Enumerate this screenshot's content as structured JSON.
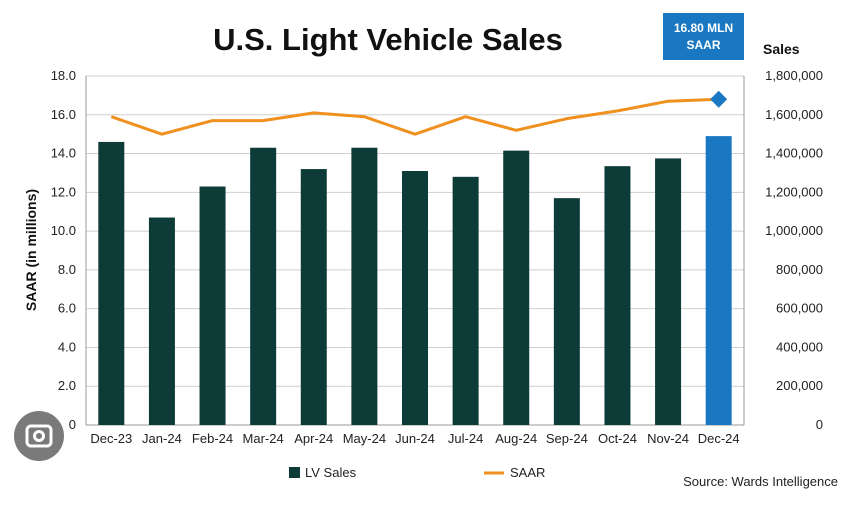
{
  "chart_data": {
    "type": "bar+line",
    "title": "U.S. Light Vehicle Sales",
    "categories": [
      "Dec-23",
      "Jan-24",
      "Feb-24",
      "Mar-24",
      "Apr-24",
      "May-24",
      "Jun-24",
      "Jul-24",
      "Aug-24",
      "Sep-24",
      "Oct-24",
      "Nov-24",
      "Dec-24"
    ],
    "series": [
      {
        "name": "LV Sales",
        "type": "bar",
        "axis": "right",
        "values": [
          1460000,
          1070000,
          1230000,
          1430000,
          1320000,
          1430000,
          1310000,
          1280000,
          1415000,
          1170000,
          1335000,
          1375000,
          1490000
        ],
        "color": "#0d3b38",
        "highlight_color": "#1a78c2"
      },
      {
        "name": "SAAR",
        "type": "line",
        "axis": "left",
        "values": [
          15.9,
          15.0,
          15.7,
          15.7,
          16.1,
          15.9,
          15.0,
          15.9,
          15.2,
          15.8,
          16.2,
          16.7,
          16.8
        ],
        "color": "#f0901e"
      }
    ],
    "ylabel": "SAAR (in millions)",
    "ylim": [
      0,
      18
    ],
    "yticks": [
      "0",
      "2.0",
      "4.0",
      "6.0",
      "8.0",
      "10.0",
      "12.0",
      "14.0",
      "16.0",
      "18.0"
    ],
    "y2label": "Sales",
    "y2lim": [
      0,
      1800000
    ],
    "y2ticks": [
      "0",
      "200,000",
      "400,000",
      "600,000",
      "800,000",
      "1,000,000",
      "1,200,000",
      "1,400,000",
      "1,600,000",
      "1,800,000"
    ],
    "callout": {
      "line1": "16.80 MLN",
      "line2": "SAAR",
      "color": "#1a78c2"
    },
    "legend": [
      {
        "label": "LV Sales",
        "color": "#0d3b38"
      },
      {
        "label": "SAAR",
        "color": "#f0901e"
      }
    ],
    "legend_position": "bottom",
    "source": "Source: Wards Intelligence"
  }
}
